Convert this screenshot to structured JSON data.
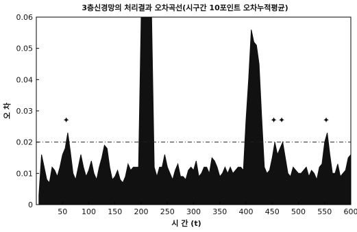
{
  "chart_data": {
    "type": "area",
    "title": "3층신경망의 처리결과 오차곡선(시구간 10포인트 오차누적평균)",
    "xlabel": "시  간 (t)",
    "ylabel": "오  차",
    "xlim": [
      0,
      600
    ],
    "ylim": [
      0,
      0.06
    ],
    "x_ticks": [
      "50",
      "100",
      "150",
      "200",
      "250",
      "300",
      "350",
      "400",
      "450",
      "500",
      "550",
      "600"
    ],
    "y_ticks": [
      "0",
      "0.01",
      "0.02",
      "0.03",
      "0.04",
      "0.05",
      "0.06"
    ],
    "grid": false,
    "threshold": 0.02,
    "series": [
      {
        "x": [
          5,
          10,
          15,
          20,
          25,
          30,
          35,
          40,
          45,
          50,
          55,
          60,
          65,
          70,
          75,
          80,
          85,
          90,
          95,
          100,
          105,
          110,
          115,
          120,
          125,
          130,
          135,
          140,
          145,
          150,
          155,
          160,
          165,
          170,
          175,
          180,
          185,
          190,
          195,
          200,
          205,
          210,
          215,
          220,
          225,
          230,
          235,
          240,
          245,
          250,
          255,
          260,
          265,
          270,
          275,
          280,
          285,
          290,
          295,
          300,
          305,
          310,
          315,
          320,
          325,
          330,
          335,
          340,
          345,
          350,
          355,
          360,
          365,
          370,
          375,
          380,
          385,
          390,
          395,
          400,
          405,
          410,
          415,
          420,
          425,
          430,
          435,
          440,
          445,
          450,
          455,
          460,
          465,
          470,
          475,
          480,
          485,
          490,
          495,
          500,
          505,
          510,
          515,
          520,
          525,
          530,
          535,
          540,
          545,
          550,
          555,
          560,
          565,
          570,
          575,
          580,
          585,
          590,
          595,
          600
        ],
        "values": [
          0.003,
          0.016,
          0.012,
          0.008,
          0.007,
          0.012,
          0.011,
          0.009,
          0.012,
          0.016,
          0.018,
          0.023,
          0.017,
          0.01,
          0.008,
          0.012,
          0.016,
          0.012,
          0.009,
          0.011,
          0.014,
          0.01,
          0.008,
          0.012,
          0.015,
          0.019,
          0.018,
          0.012,
          0.008,
          0.009,
          0.011,
          0.008,
          0.007,
          0.009,
          0.013,
          0.011,
          0.012,
          0.012,
          0.012,
          0.06,
          0.06,
          0.06,
          0.06,
          0.06,
          0.012,
          0.009,
          0.012,
          0.012,
          0.016,
          0.012,
          0.01,
          0.008,
          0.011,
          0.013,
          0.009,
          0.009,
          0.008,
          0.011,
          0.012,
          0.011,
          0.014,
          0.009,
          0.01,
          0.012,
          0.012,
          0.01,
          0.015,
          0.014,
          0.012,
          0.009,
          0.01,
          0.012,
          0.01,
          0.012,
          0.01,
          0.011,
          0.012,
          0.012,
          0.011,
          0.027,
          0.04,
          0.056,
          0.052,
          0.051,
          0.045,
          0.028,
          0.012,
          0.01,
          0.011,
          0.015,
          0.02,
          0.016,
          0.018,
          0.02,
          0.015,
          0.01,
          0.009,
          0.012,
          0.011,
          0.01,
          0.01,
          0.011,
          0.012,
          0.009,
          0.011,
          0.01,
          0.008,
          0.012,
          0.013,
          0.02,
          0.023,
          0.016,
          0.01,
          0.01,
          0.013,
          0.009,
          0.01,
          0.011,
          0.015,
          0.016
        ]
      }
    ],
    "markers": [
      {
        "x": 57,
        "y": 0.027
      },
      {
        "x": 453,
        "y": 0.027
      },
      {
        "x": 468,
        "y": 0.027
      },
      {
        "x": 553,
        "y": 0.027
      }
    ]
  },
  "colors": {
    "fill": "#111111",
    "axis": "#000000",
    "threshold": "#222222"
  }
}
